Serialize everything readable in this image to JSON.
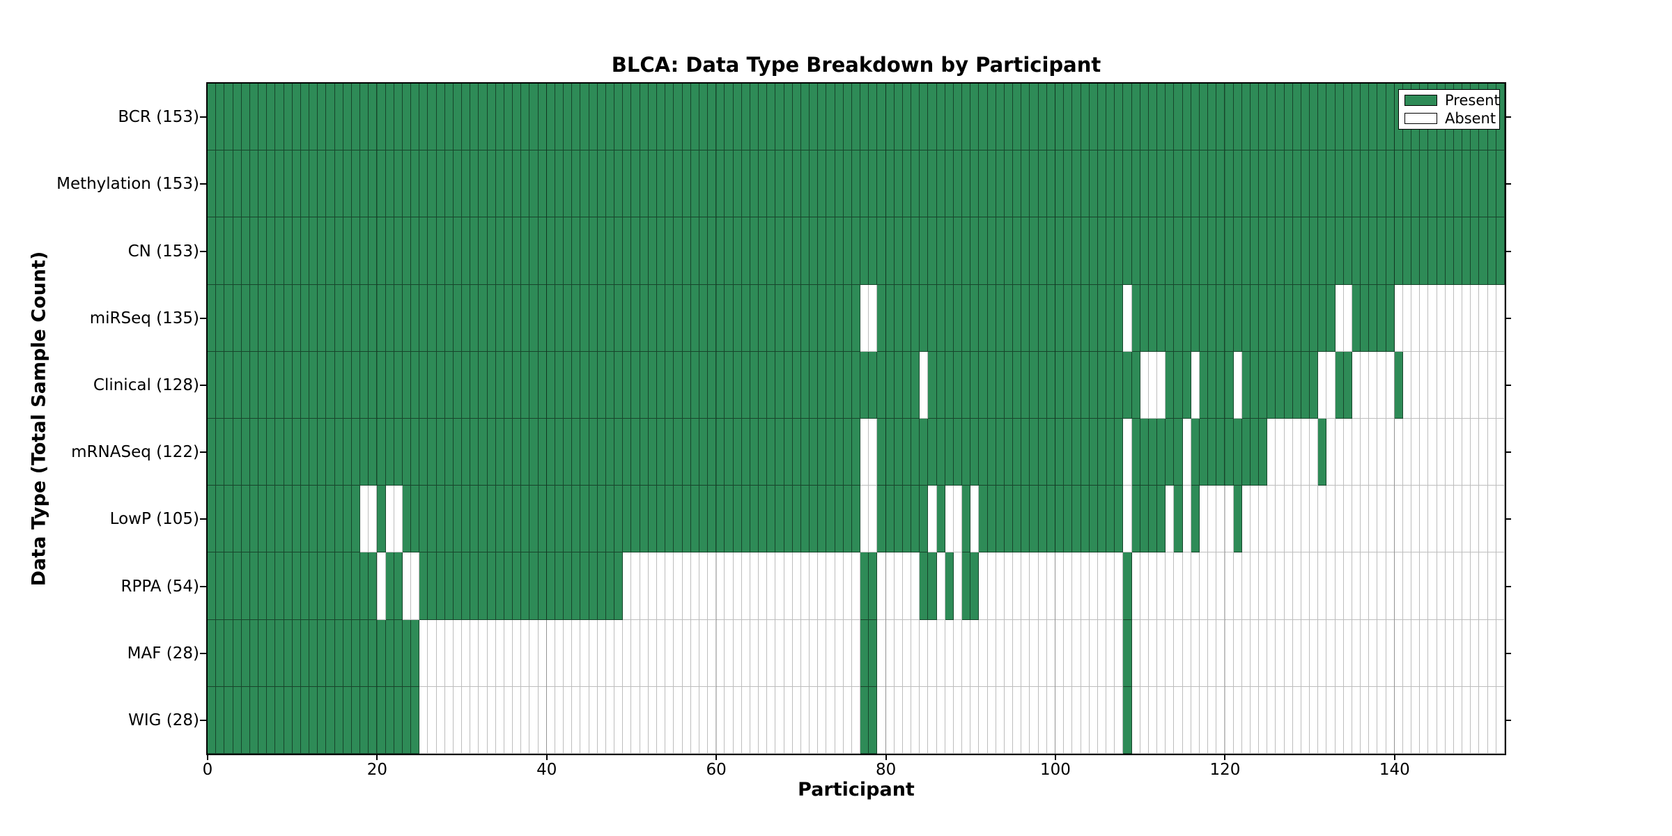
{
  "title": "BLCA: Data Type Breakdown by Participant",
  "xlabel": "Participant",
  "ylabel": "Data Type (Total Sample Count)",
  "legend": {
    "items": [
      {
        "label": "Present",
        "color": "#2E8B57"
      },
      {
        "label": "Absent",
        "color": "#FFFFFF"
      }
    ]
  },
  "colors": {
    "present": "#2E8B57",
    "absent": "#FFFFFF",
    "frame": "#000000"
  },
  "chart_data": {
    "type": "heatmap",
    "title": "BLCA: Data Type Breakdown by Participant",
    "xlabel": "Participant",
    "ylabel": "Data Type (Total Sample Count)",
    "x_ticks": [
      0,
      20,
      40,
      60,
      80,
      100,
      120,
      140
    ],
    "xlim": [
      0,
      153
    ],
    "n_participants": 153,
    "grid": "vertical major gridlines at x ticks",
    "legend_position": "upper right",
    "cell_encoding": "each row lists 0-based participant indices with data ABSENT; all other participants 0..152 are PRESENT (green)",
    "rows": [
      {
        "label": "BCR (153)",
        "data_type": "BCR",
        "present_count": 153,
        "absent": []
      },
      {
        "label": "Methylation (153)",
        "data_type": "Methylation",
        "present_count": 153,
        "absent": []
      },
      {
        "label": "CN (153)",
        "data_type": "CN",
        "present_count": 153,
        "absent": []
      },
      {
        "label": "miRSeq (135)",
        "data_type": "miRSeq",
        "present_count": 135,
        "absent": [
          77,
          78,
          108,
          133,
          134,
          140,
          141,
          142,
          143,
          144,
          145,
          146,
          147,
          148,
          149,
          150,
          151,
          152
        ]
      },
      {
        "label": "Clinical (128)",
        "data_type": "Clinical",
        "present_count": 128,
        "absent": [
          84,
          110,
          111,
          112,
          116,
          121,
          131,
          132,
          135,
          136,
          137,
          138,
          139,
          141,
          142,
          143,
          144,
          145,
          146,
          147,
          148,
          149,
          150,
          151,
          152
        ]
      },
      {
        "label": "mRNASeq (122)",
        "data_type": "mRNASeq",
        "present_count": 122,
        "absent": [
          77,
          78,
          108,
          115,
          125,
          126,
          127,
          128,
          129,
          130,
          132,
          133,
          134,
          135,
          136,
          137,
          138,
          139,
          140,
          141,
          142,
          143,
          144,
          145,
          146,
          147,
          148,
          149,
          150,
          151,
          152
        ]
      },
      {
        "label": "LowP (105)",
        "data_type": "LowP",
        "present_count": 105,
        "absent": [
          18,
          19,
          21,
          22,
          77,
          78,
          85,
          87,
          88,
          90,
          108,
          113,
          115,
          117,
          118,
          119,
          120,
          122,
          123,
          124,
          125,
          126,
          127,
          128,
          129,
          130,
          131,
          132,
          133,
          134,
          135,
          136,
          137,
          138,
          139,
          140,
          141,
          142,
          143,
          144,
          145,
          146,
          147,
          148,
          149,
          150,
          151,
          152
        ]
      },
      {
        "label": "RPPA (54)",
        "data_type": "RPPA",
        "present_count": 54,
        "absent": [
          20,
          23,
          24,
          49,
          50,
          51,
          52,
          53,
          54,
          55,
          56,
          57,
          58,
          59,
          60,
          61,
          62,
          63,
          64,
          65,
          66,
          67,
          68,
          69,
          70,
          71,
          72,
          73,
          74,
          75,
          76,
          79,
          80,
          81,
          82,
          83,
          86,
          88,
          91,
          92,
          93,
          94,
          95,
          96,
          97,
          98,
          99,
          100,
          101,
          102,
          103,
          104,
          105,
          106,
          107,
          109,
          110,
          111,
          112,
          113,
          114,
          115,
          116,
          117,
          118,
          119,
          120,
          121,
          122,
          123,
          124,
          125,
          126,
          127,
          128,
          129,
          130,
          131,
          132,
          133,
          134,
          135,
          136,
          137,
          138,
          139,
          140,
          141,
          142,
          143,
          144,
          145,
          146,
          147,
          148,
          149,
          150,
          151,
          152
        ]
      },
      {
        "label": "MAF (28)",
        "data_type": "MAF",
        "present_count": 28,
        "absent": [
          25,
          26,
          27,
          28,
          29,
          30,
          31,
          32,
          33,
          34,
          35,
          36,
          37,
          38,
          39,
          40,
          41,
          42,
          43,
          44,
          45,
          46,
          47,
          48,
          49,
          50,
          51,
          52,
          53,
          54,
          55,
          56,
          57,
          58,
          59,
          60,
          61,
          62,
          63,
          64,
          65,
          66,
          67,
          68,
          69,
          70,
          71,
          72,
          73,
          74,
          75,
          76,
          79,
          80,
          81,
          82,
          83,
          84,
          85,
          86,
          87,
          88,
          89,
          90,
          91,
          92,
          93,
          94,
          95,
          96,
          97,
          98,
          99,
          100,
          101,
          102,
          103,
          104,
          105,
          106,
          107,
          109,
          110,
          111,
          112,
          113,
          114,
          115,
          116,
          117,
          118,
          119,
          120,
          121,
          122,
          123,
          124,
          125,
          126,
          127,
          128,
          129,
          130,
          131,
          132,
          133,
          134,
          135,
          136,
          137,
          138,
          139,
          140,
          141,
          142,
          143,
          144,
          145,
          146,
          147,
          148,
          149,
          150,
          151,
          152
        ]
      },
      {
        "label": "WIG (28)",
        "data_type": "WIG",
        "present_count": 28,
        "absent": [
          25,
          26,
          27,
          28,
          29,
          30,
          31,
          32,
          33,
          34,
          35,
          36,
          37,
          38,
          39,
          40,
          41,
          42,
          43,
          44,
          45,
          46,
          47,
          48,
          49,
          50,
          51,
          52,
          53,
          54,
          55,
          56,
          57,
          58,
          59,
          60,
          61,
          62,
          63,
          64,
          65,
          66,
          67,
          68,
          69,
          70,
          71,
          72,
          73,
          74,
          75,
          76,
          79,
          80,
          81,
          82,
          83,
          84,
          85,
          86,
          87,
          88,
          89,
          90,
          91,
          92,
          93,
          94,
          95,
          96,
          97,
          98,
          99,
          100,
          101,
          102,
          103,
          104,
          105,
          106,
          107,
          109,
          110,
          111,
          112,
          113,
          114,
          115,
          116,
          117,
          118,
          119,
          120,
          121,
          122,
          123,
          124,
          125,
          126,
          127,
          128,
          129,
          130,
          131,
          132,
          133,
          134,
          135,
          136,
          137,
          138,
          139,
          140,
          141,
          142,
          143,
          144,
          145,
          146,
          147,
          148,
          149,
          150,
          151,
          152
        ]
      }
    ]
  }
}
